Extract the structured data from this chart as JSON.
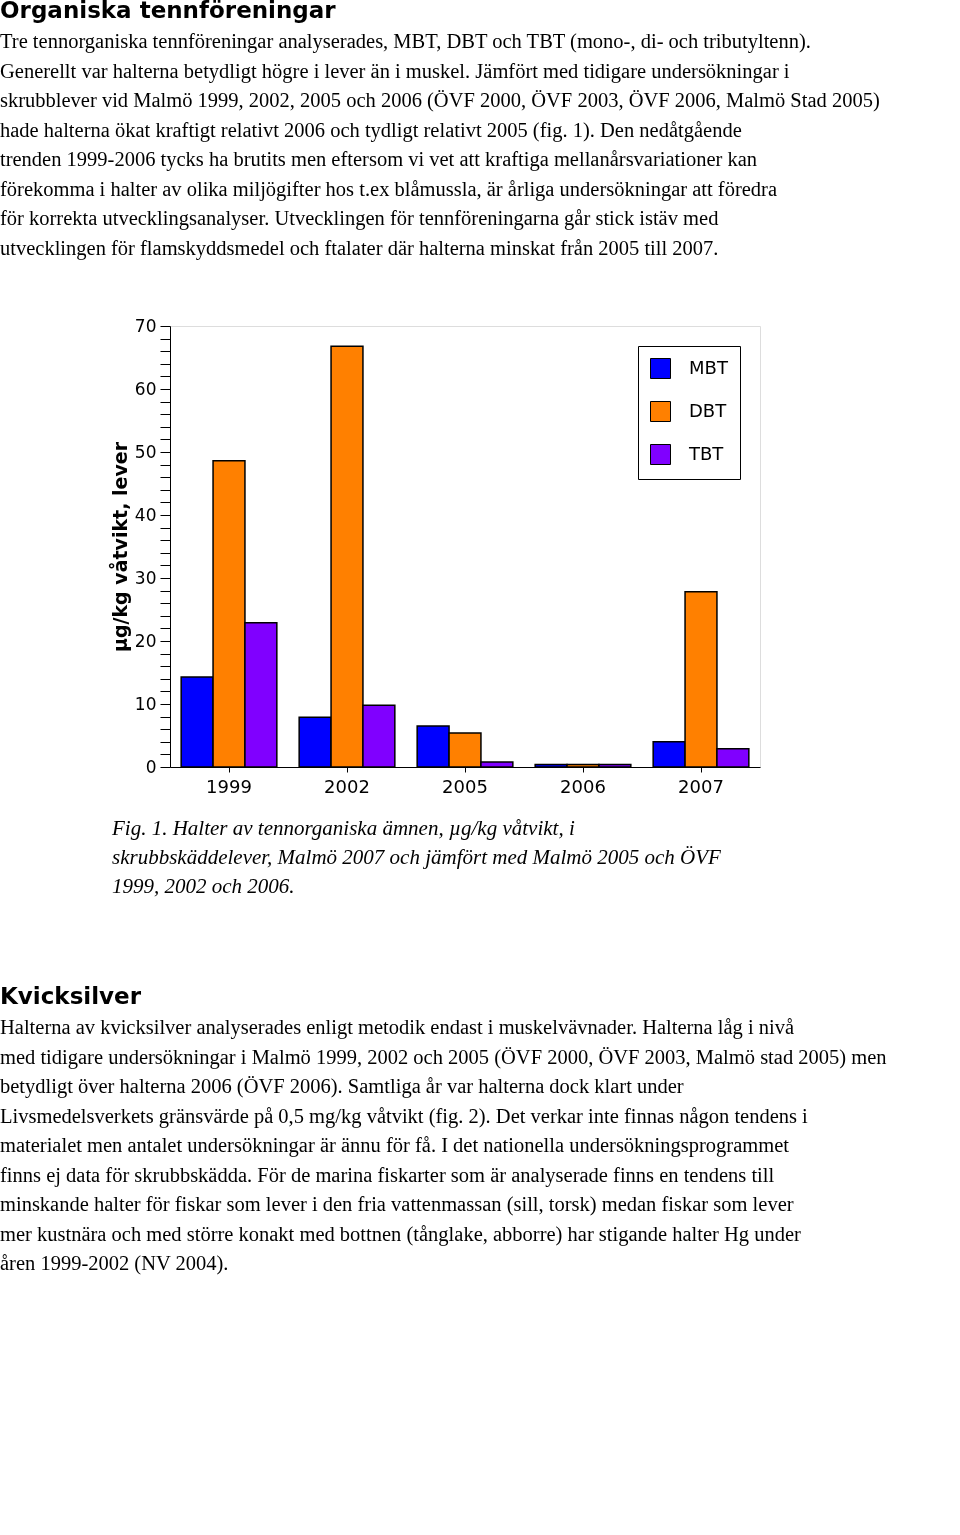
{
  "chart_data": {
    "type": "bar",
    "title": "Organiska tennföreningar",
    "subtitle": "Tre tennorganiska tennföreningar analyserades, MBT, DBT och TBT (mono-, di- och tributyltenn). Generellt var halterna betydligt högre i lever än i muskel. Jämfört med tidigare undersökningar i skrubblever vid Malmö 1999, 2002, 2005 och 2006 (ÖVF 2000, ÖVF 2003, ÖVF 2006, Malmö Stad 2005) hade halterna ökat kraftigt relativt 2006 och tydligt relativt 2005 (fig. 1). Den nedåtgående trenden 1999-2006 tycks ha brutits men eftersom vi vet att kraftiga mellanårsvariationer kan förekomma i halter av olika miljögifter hos t.ex blåmussla, är årliga undersökningar att föredra för korrekta utvecklingsanalyser. Utvecklingen för tennföreningarna går stick istäv med utvecklingen för flamskyddsmedel och ftalater där halterna minskat från 2005 till 2007.",
    "ylabel": "µg/kg våtvikt, lever",
    "categories": [
      "1999",
      "2002",
      "2005",
      "2006",
      "2007"
    ],
    "series": [
      {
        "name": "MBT",
        "color": "#0000ff",
        "values": [
          14.3,
          7.9,
          6.5,
          0.4,
          4.0
        ]
      },
      {
        "name": "DBT",
        "color": "#ff8000",
        "values": [
          48.6,
          66.8,
          5.4,
          0.4,
          27.8
        ]
      },
      {
        "name": "TBT",
        "color": "#8000ff",
        "values": [
          22.9,
          9.8,
          0.8,
          0.4,
          2.9
        ]
      }
    ],
    "ylim": [
      0,
      70
    ],
    "yticks": [
      0,
      {
        "value": 2,
        "label": null
      },
      {
        "value": 4,
        "label": null
      },
      {
        "value": 6,
        "label": null
      },
      {
        "value": 8,
        "label": null
      },
      10,
      {
        "value": 12,
        "label": null
      },
      {
        "value": 14,
        "label": null
      },
      {
        "value": 16,
        "label": null
      },
      {
        "value": 18,
        "label": null
      },
      20,
      {
        "value": 22,
        "label": null
      },
      {
        "value": 24,
        "label": null
      },
      {
        "value": 26,
        "label": null
      },
      {
        "value": 28,
        "label": null
      },
      30,
      {
        "value": 32,
        "label": null
      },
      {
        "value": 34,
        "label": null
      },
      {
        "value": 36,
        "label": null
      },
      {
        "value": 38,
        "label": null
      },
      40,
      {
        "value": 42,
        "label": null
      },
      {
        "value": 44,
        "label": null
      },
      {
        "value": 46,
        "label": null
      },
      {
        "value": 48,
        "label": null
      },
      50,
      {
        "value": 52,
        "label": null
      },
      {
        "value": 54,
        "label": null
      },
      {
        "value": 56,
        "label": null
      },
      {
        "value": 58,
        "label": null
      },
      60,
      {
        "value": 62,
        "label": null
      },
      {
        "value": 64,
        "label": null
      },
      {
        "value": 66,
        "label": null
      },
      {
        "value": 68,
        "label": null
      },
      70
    ],
    "grid": false,
    "legend": "top right",
    "annotations": [
      "Fig. 1. Halter av tennorganiska ämnen, µg/kg våtvikt, i skrubbskäddelever, Malmö 2007 och jämfört med Malmö 2005 och ÖVF 1999, 2002 och 2006.",
      "Kvicksilver",
      "Halterna av kvicksilver analyserades enligt metodik endast i muskelvävnader. Halterna låg i nivå med tidigare undersökningar i Malmö 1999, 2002 och 2005 (ÖVF 2000, ÖVF 2003, Malmö stad 2005) men betydligt över halterna 2006 (ÖVF 2006). Samtliga år var halterna dock klart under Livsmedelsverkets gränsvärde på 0,5 mg/kg våtvikt (fig. 2). Det verkar inte finnas någon tendens i materialet men antalet undersökningar är ännu för få. I det nationella undersökningsprogrammet finns ej data för skrubbskädda. För de marina fiskarter som är analyserade finns en tendens till minskande halter för fiskar som lever i den fria vattenmassan (sill, torsk) medan fiskar som lever mer kustnära och med större konakt med bottnen (tånglake, abborre) har stigande halter Hg under åren 1999-2002 (NV 2004)."
    ]
  }
}
